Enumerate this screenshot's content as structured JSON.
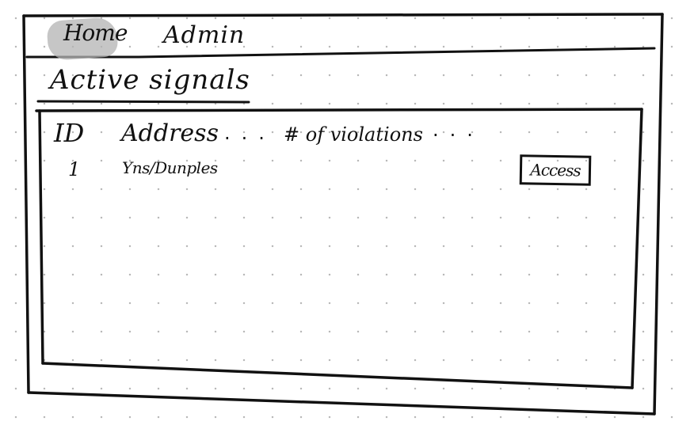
{
  "nav": {
    "tabs": [
      {
        "label": "Home",
        "active": true
      },
      {
        "label": "Admin",
        "active": false
      }
    ],
    "active_tab_color": "#b3b3b3"
  },
  "page": {
    "title": "Active signals"
  },
  "table": {
    "columns": [
      "ID",
      "Address",
      "# of violations"
    ],
    "ellipsis": "...",
    "rows": [
      {
        "id": "1",
        "address": "Yns/Dunples",
        "action_label": "Access"
      }
    ]
  }
}
